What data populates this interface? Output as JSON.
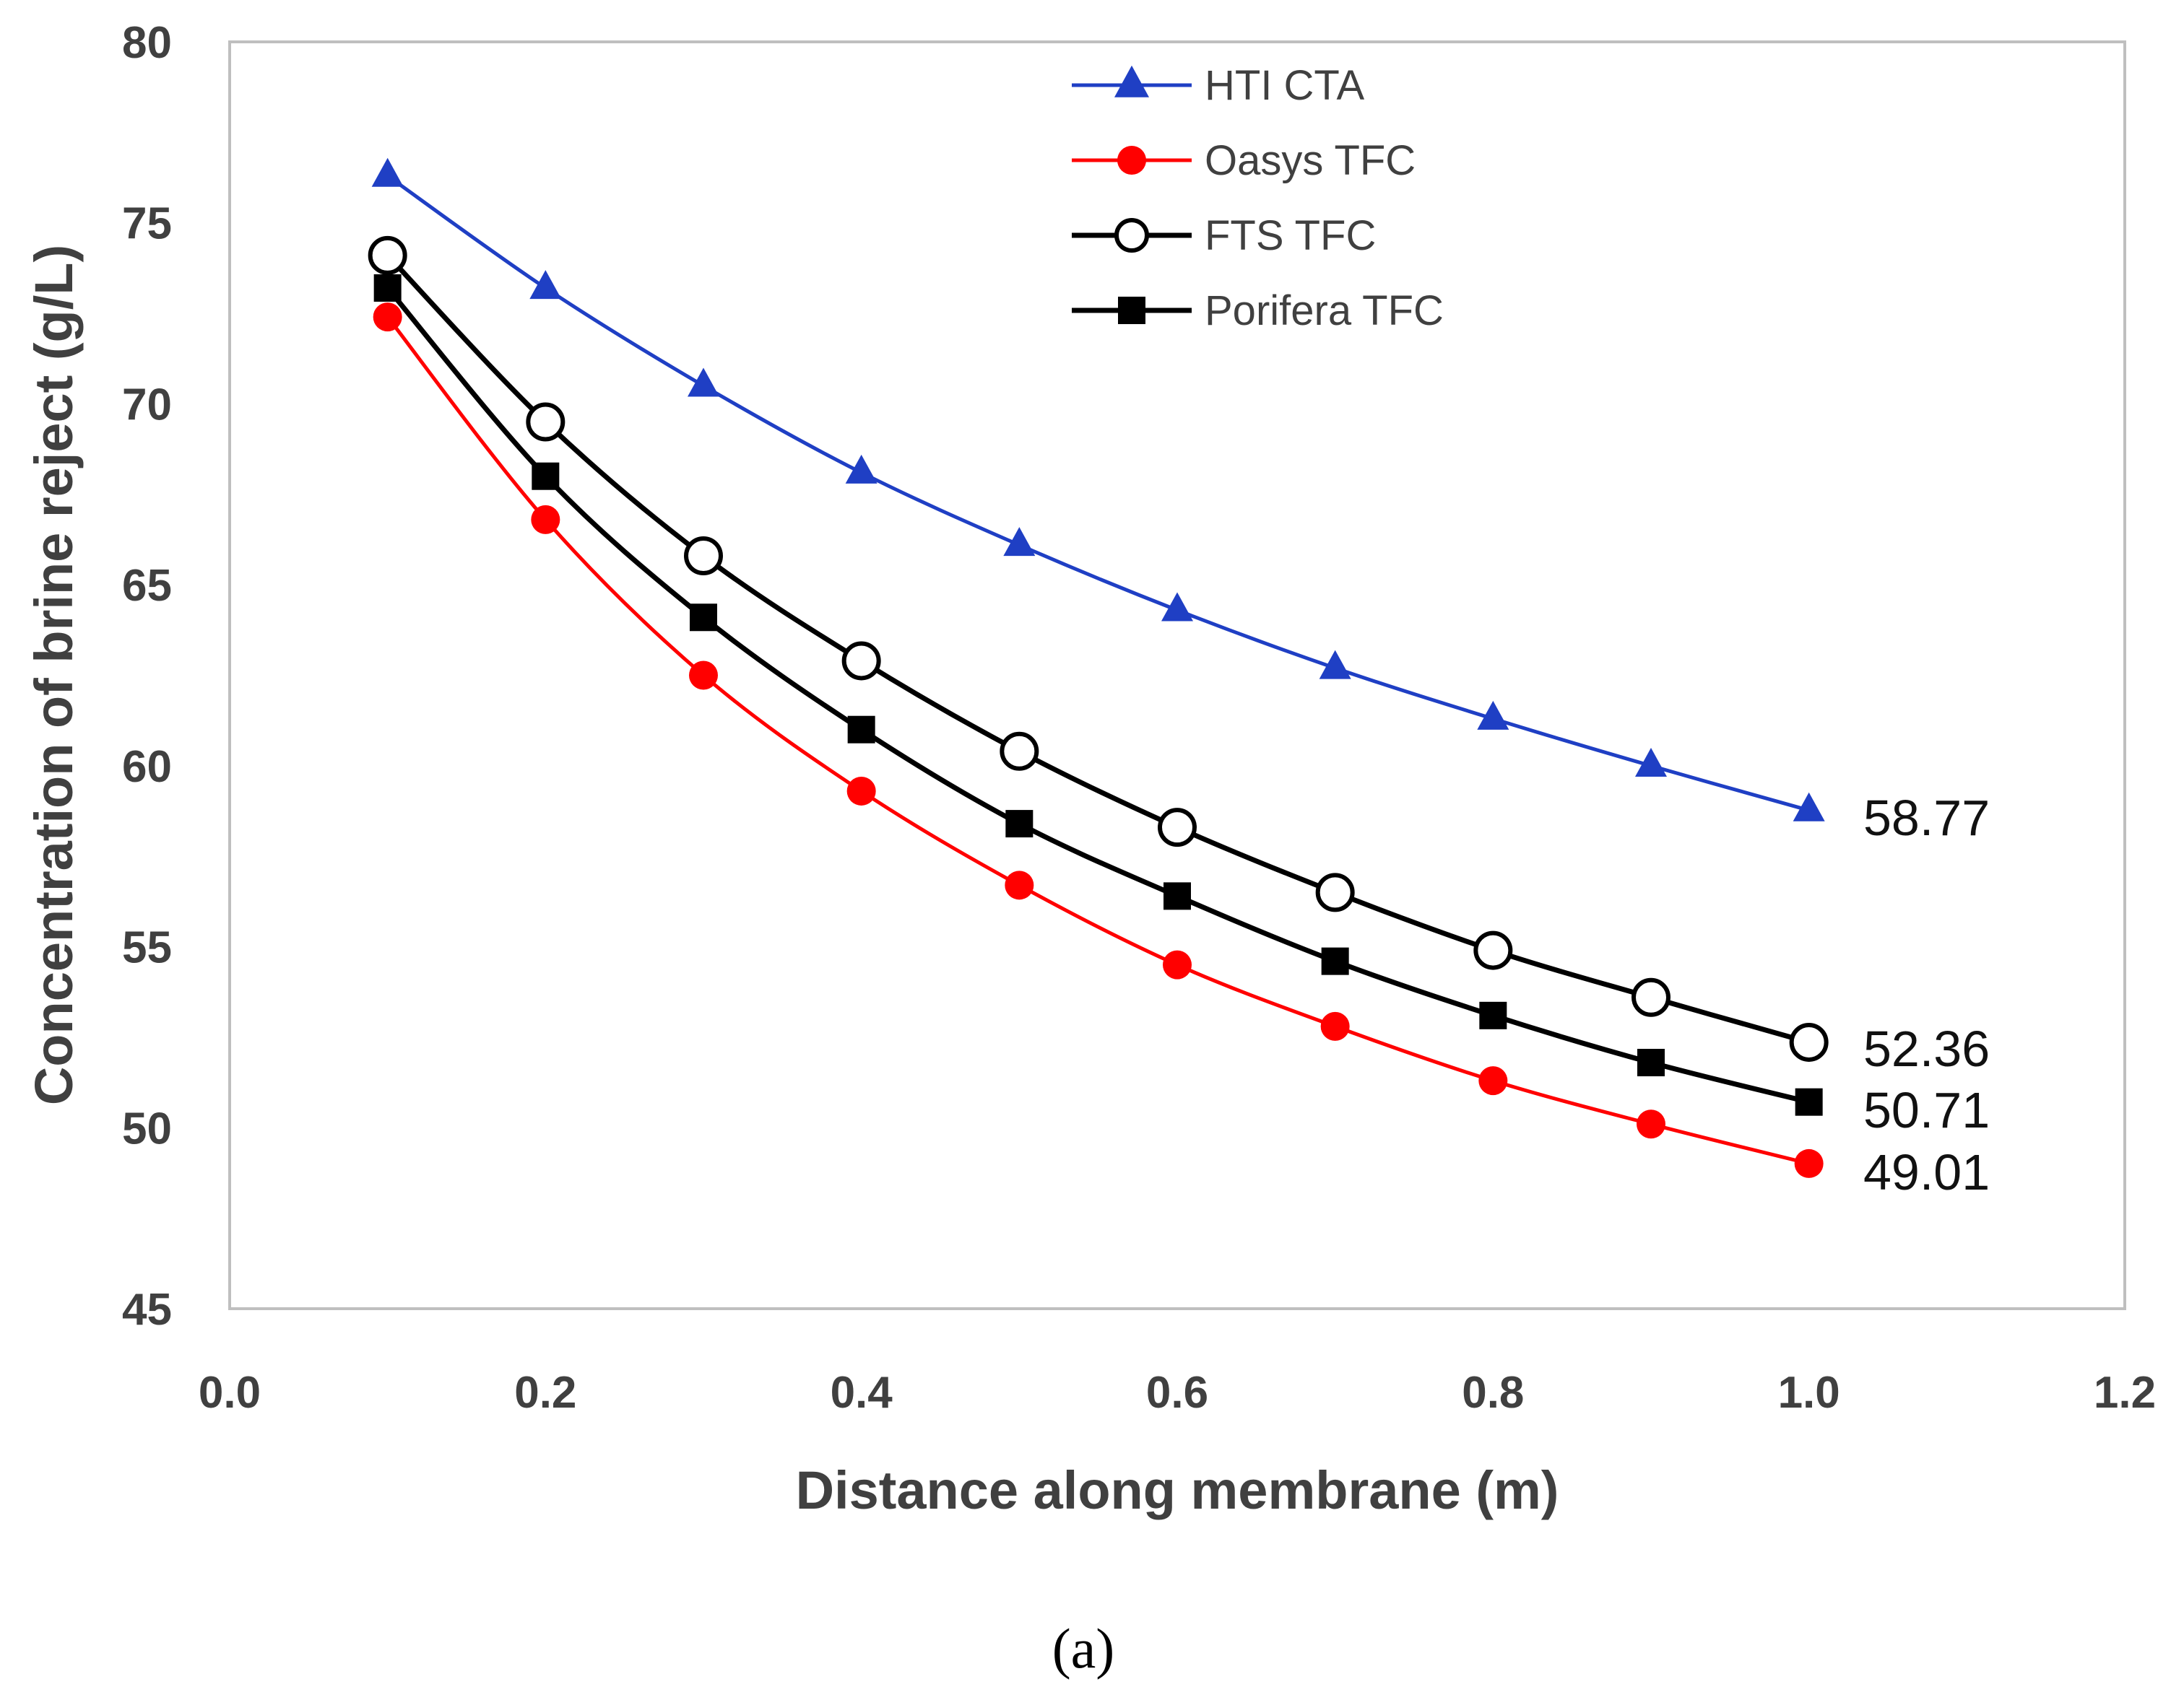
{
  "chart_data": {
    "type": "line",
    "title": "",
    "xlabel": "Distance along membrane (m)",
    "ylabel": "Concentration of brine reject (g/L)",
    "xlim": [
      0.0,
      1.2
    ],
    "ylim": [
      45,
      80
    ],
    "xticks": [
      0.0,
      0.2,
      0.4,
      0.6,
      0.8,
      1.0,
      1.2
    ],
    "xtick_labels": [
      "0.0",
      "0.2",
      "0.4",
      "0.6",
      "0.8",
      "1.0",
      "1.2"
    ],
    "yticks": [
      45,
      50,
      55,
      60,
      65,
      70,
      75,
      80
    ],
    "ytick_labels": [
      "45",
      "50",
      "55",
      "60",
      "65",
      "70",
      "75",
      "80"
    ],
    "grid": false,
    "legend_position": "top-center",
    "x": [
      0.1,
      0.2,
      0.3,
      0.4,
      0.5,
      0.6,
      0.7,
      0.8,
      0.9,
      1.0
    ],
    "series": [
      {
        "name": "HTI CTA",
        "color": "#1f3fc4",
        "marker": "triangle",
        "values": [
          76.3,
          73.2,
          70.5,
          68.1,
          66.1,
          64.3,
          62.7,
          61.3,
          60.0,
          58.77
        ],
        "end_label": "58.77"
      },
      {
        "name": "Oasys TFC",
        "color": "#ff0000",
        "marker": "circle-filled",
        "values": [
          72.4,
          66.8,
          62.5,
          59.3,
          56.7,
          54.5,
          52.8,
          51.3,
          50.1,
          49.01
        ],
        "end_label": "49.01"
      },
      {
        "name": "FTS TFC",
        "color": "#000000",
        "marker": "circle-open",
        "values": [
          74.1,
          69.5,
          65.8,
          62.9,
          60.4,
          58.3,
          56.5,
          54.9,
          53.6,
          52.36
        ],
        "end_label": "52.36"
      },
      {
        "name": "Porifera TFC",
        "color": "#000000",
        "marker": "square",
        "values": [
          73.2,
          68.0,
          64.1,
          61.0,
          58.4,
          56.4,
          54.6,
          53.1,
          51.8,
          50.71
        ],
        "end_label": "50.71"
      }
    ],
    "caption": "(a)"
  }
}
